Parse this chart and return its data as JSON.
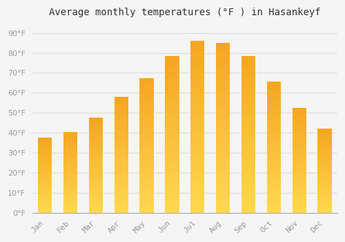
{
  "title": "Average monthly temperatures (°F ) in Hasankeyf",
  "months": [
    "Jan",
    "Feb",
    "Mar",
    "Apr",
    "May",
    "Jun",
    "Jul",
    "Aug",
    "Sep",
    "Oct",
    "Nov",
    "Dec"
  ],
  "values": [
    37.5,
    40.5,
    47.5,
    58,
    67.5,
    78.5,
    86,
    85,
    78.5,
    65.5,
    52.5,
    42
  ],
  "bar_color_bottom": "#FFD84E",
  "bar_color_top": "#F5A623",
  "background_color": "#F5F5F5",
  "grid_color": "#DDDDDD",
  "title_fontsize": 10,
  "tick_fontsize": 8,
  "tick_color": "#999999",
  "ylim": [
    0,
    95
  ],
  "yticks": [
    0,
    10,
    20,
    30,
    40,
    50,
    60,
    70,
    80,
    90
  ],
  "bar_width": 0.55
}
